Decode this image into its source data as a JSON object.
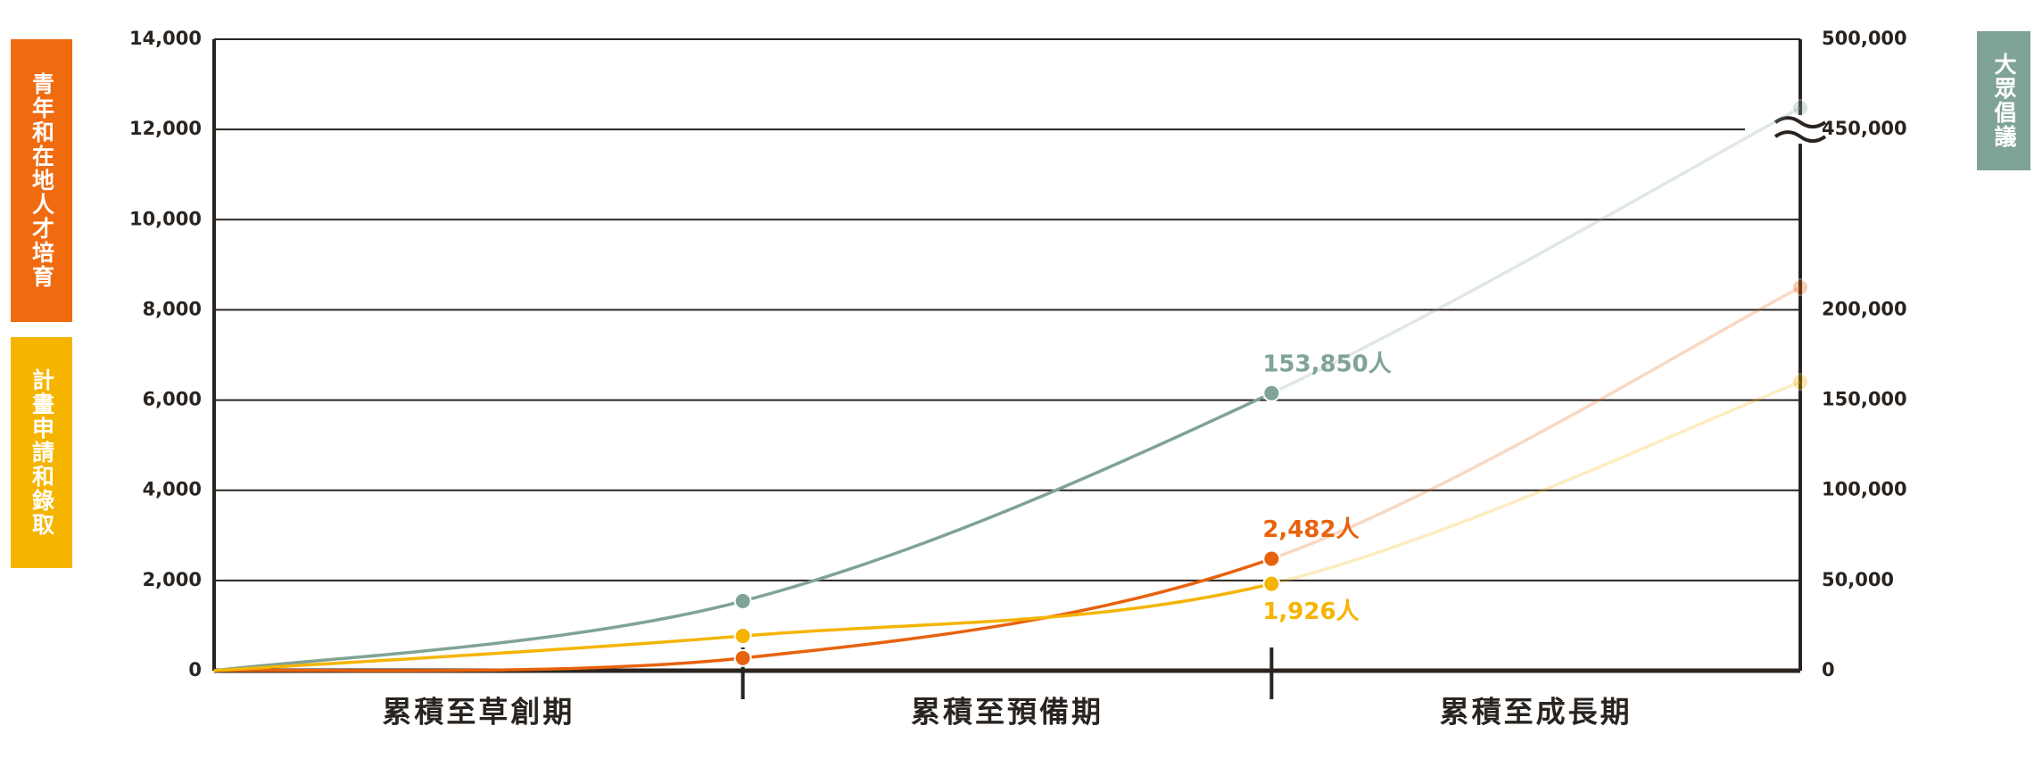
{
  "chart_data": {
    "type": "line",
    "categories": [
      null,
      "累積至草創期",
      "累積至預備期",
      "累積至成長期"
    ],
    "series": [
      {
        "name": "大眾倡議",
        "color": "#7fa395",
        "axis": "y2",
        "values": [
          0,
          38600,
          153850,
          462000
        ],
        "value_labels": [
          null,
          null,
          "153,850人",
          null
        ]
      },
      {
        "name": "青年和在地人才培育",
        "color": "#e8620e",
        "values": [
          0,
          280,
          2482,
          8500
        ],
        "value_labels": [
          null,
          null,
          "2,482人",
          null
        ]
      },
      {
        "name": "計畫申請和錄取",
        "color": "#f5b400",
        "values": [
          0,
          770,
          1926,
          6400
        ],
        "value_labels": [
          null,
          null,
          "1,926人",
          null
        ]
      }
    ],
    "ylim": [
      0,
      14000
    ],
    "yticks": [
      0,
      {
        "value": 2000,
        "label": "2,000"
      },
      {
        "value": 4000,
        "label": "4,000"
      },
      {
        "value": 6000,
        "label": "6,000"
      },
      {
        "value": 8000,
        "label": "8,000"
      },
      {
        "value": 10000,
        "label": "10,000"
      },
      {
        "value": 12000,
        "label": "12,000"
      },
      {
        "value": 14000,
        "label": "14,000"
      }
    ],
    "y2lim": [
      0,
      500000
    ],
    "y2ticks": [
      0,
      {
        "value": 50000,
        "label": "50,000"
      },
      {
        "value": 100000,
        "label": "100,000"
      },
      {
        "value": 150000,
        "label": "150,000"
      },
      {
        "value": 200000,
        "label": "200,000"
      },
      {
        "value": 450000,
        "label": "450,000"
      },
      {
        "value": 500000,
        "label": "500,000"
      }
    ],
    "y2_axis_break": true,
    "faded_last_segment": true,
    "grid": true
  }
}
